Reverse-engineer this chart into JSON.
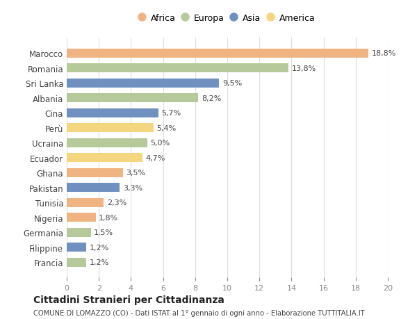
{
  "countries": [
    "Francia",
    "Filippine",
    "Germania",
    "Nigeria",
    "Tunisia",
    "Pakistan",
    "Ghana",
    "Ecuador",
    "Ucraina",
    "Perù",
    "Cina",
    "Albania",
    "Sri Lanka",
    "Romania",
    "Marocco"
  ],
  "values": [
    1.2,
    1.2,
    1.5,
    1.8,
    2.3,
    3.3,
    3.5,
    4.7,
    5.0,
    5.4,
    5.7,
    8.2,
    9.5,
    13.8,
    18.8
  ],
  "labels": [
    "1,2%",
    "1,2%",
    "1,5%",
    "1,8%",
    "2,3%",
    "3,3%",
    "3,5%",
    "4,7%",
    "5,0%",
    "5,4%",
    "5,7%",
    "8,2%",
    "9,5%",
    "13,8%",
    "18,8%"
  ],
  "continents": [
    "Europa",
    "Asia",
    "Europa",
    "Africa",
    "Africa",
    "Asia",
    "Africa",
    "America",
    "Europa",
    "America",
    "Asia",
    "Europa",
    "Asia",
    "Europa",
    "Africa"
  ],
  "continent_colors": {
    "Africa": "#F0B482",
    "Europa": "#B5C99A",
    "Asia": "#7090C0",
    "America": "#F5D680"
  },
  "legend_order": [
    "Africa",
    "Europa",
    "Asia",
    "America"
  ],
  "xlim": [
    0,
    20
  ],
  "xticks": [
    0,
    2,
    4,
    6,
    8,
    10,
    12,
    14,
    16,
    18,
    20
  ],
  "title": "Cittadini Stranieri per Cittadinanza",
  "subtitle": "COMUNE DI LOMAZZO (CO) - Dati ISTAT al 1° gennaio di ogni anno - Elaborazione TUTTITALIA.IT",
  "bg_color": "#FFFFFF",
  "grid_color": "#DDDDDD",
  "bar_height": 0.6
}
